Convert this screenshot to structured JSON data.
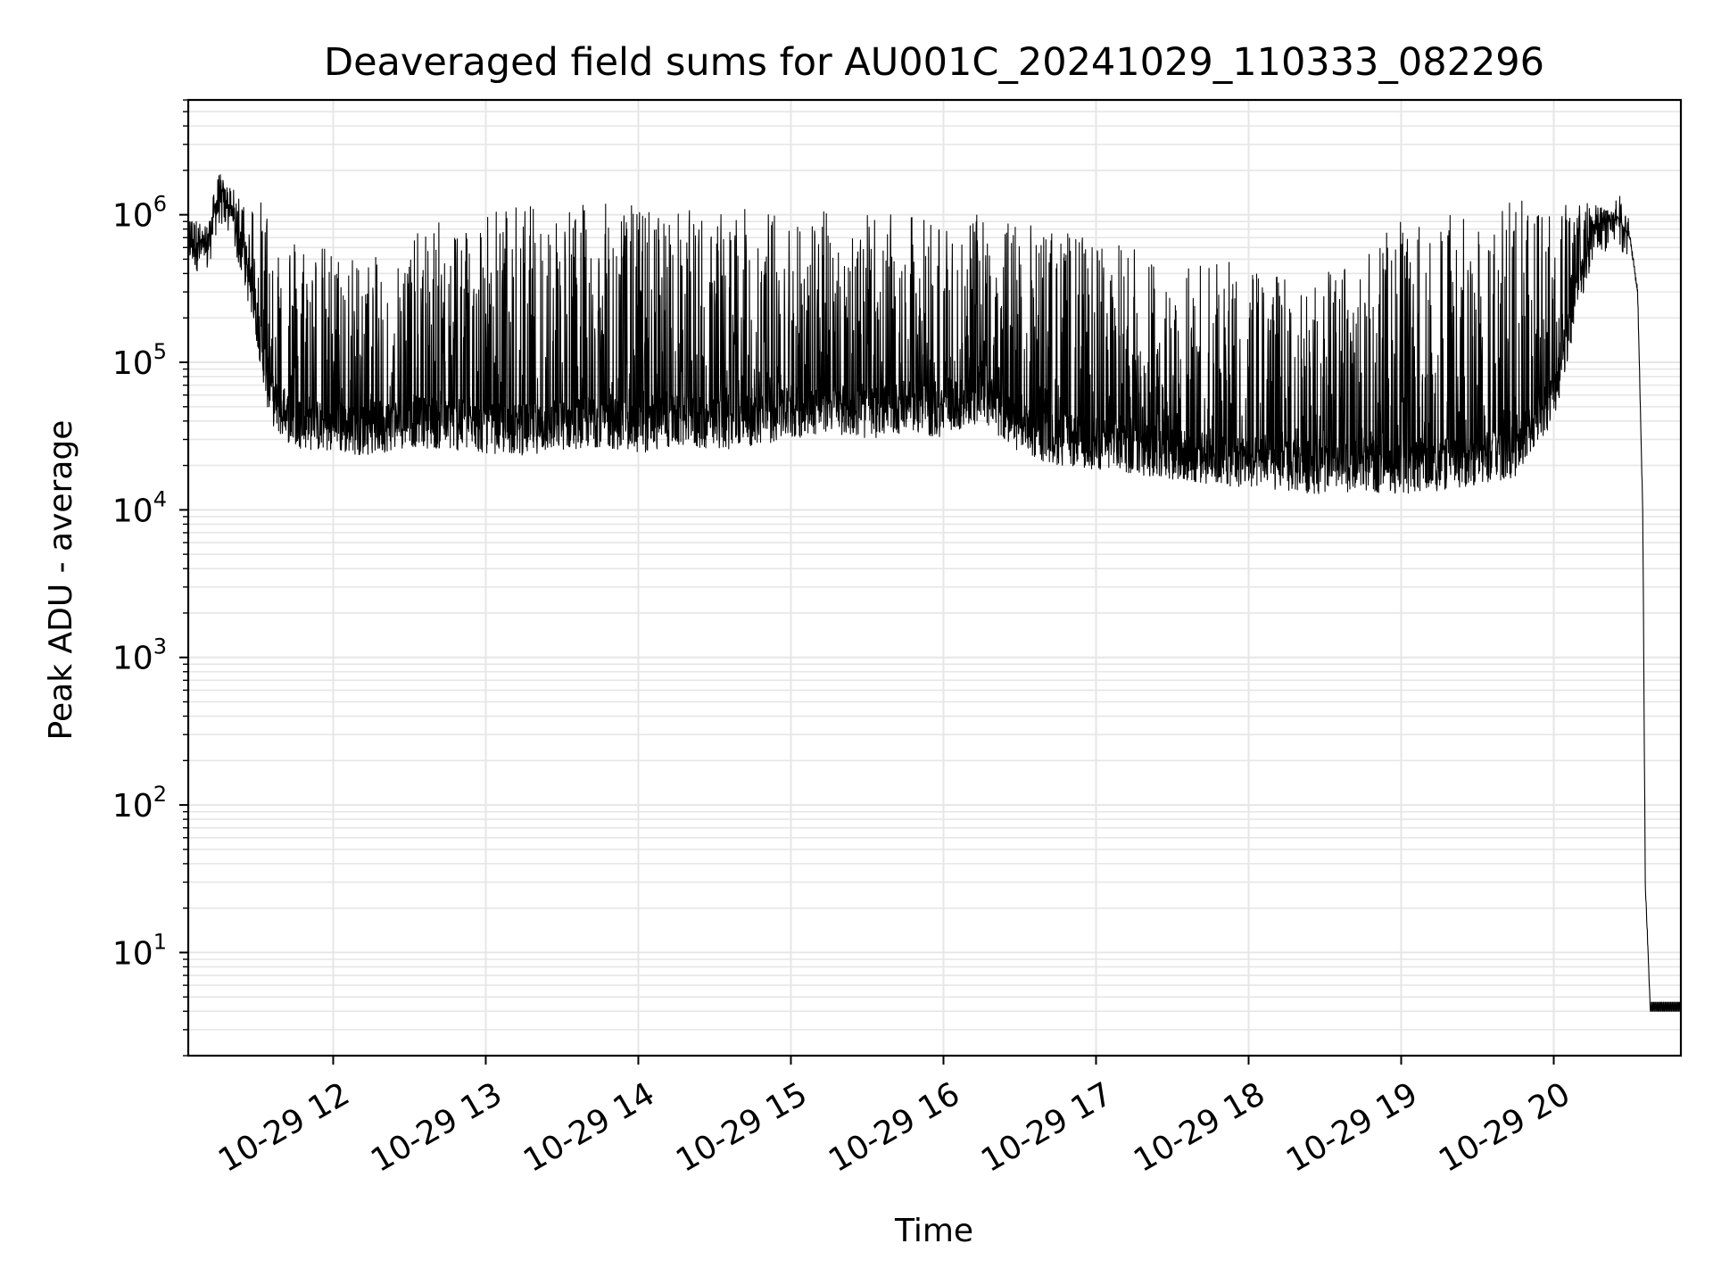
{
  "chart_data": {
    "type": "line",
    "title": "Deaveraged field sums for AU001C_20241029_110333_082296",
    "xlabel": "Time",
    "ylabel": "Peak ADU - average",
    "yscale": "log",
    "grid": true,
    "line_color": "#000000",
    "grid_color": "#e6e6e6",
    "xlim": [
      "10-29 11:03",
      "10-29 20:50"
    ],
    "ylim": [
      2,
      6000000
    ],
    "x_tick_labels": [
      "10-29 12",
      "10-29 13",
      "10-29 14",
      "10-29 15",
      "10-29 16",
      "10-29 17",
      "10-29 18",
      "10-29 19",
      "10-29 20"
    ],
    "y_tick_labels": [
      {
        "base": "10",
        "exp": "1"
      },
      {
        "base": "10",
        "exp": "2"
      },
      {
        "base": "10",
        "exp": "3"
      },
      {
        "base": "10",
        "exp": "4"
      },
      {
        "base": "10",
        "exp": "5"
      },
      {
        "base": "10",
        "exp": "6"
      }
    ],
    "series": [
      {
        "x": [
          "10-29 11:03",
          "10-29 11:10",
          "10-29 11:15",
          "10-29 11:20",
          "10-29 11:25",
          "10-29 11:30",
          "10-29 11:35",
          "10-29 11:40",
          "10-29 11:45",
          "10-29 11:50",
          "10-29 12:00",
          "10-29 12:15",
          "10-29 12:30",
          "10-29 12:45",
          "10-29 13:00",
          "10-29 13:15",
          "10-29 13:30",
          "10-29 13:45",
          "10-29 14:00",
          "10-29 14:15",
          "10-29 14:30",
          "10-29 14:45",
          "10-29 15:00",
          "10-29 15:15",
          "10-29 15:30",
          "10-29 15:45",
          "10-29 16:00",
          "10-29 16:15",
          "10-29 16:30",
          "10-29 16:45",
          "10-29 17:00",
          "10-29 17:15",
          "10-29 17:30",
          "10-29 17:45",
          "10-29 18:00",
          "10-29 18:15",
          "10-29 18:30",
          "10-29 18:45",
          "10-29 19:00",
          "10-29 19:15",
          "10-29 19:30",
          "10-29 19:45",
          "10-29 20:00",
          "10-29 20:15",
          "10-29 20:25",
          "10-29 20:30",
          "10-29 20:33",
          "10-29 20:35",
          "10-29 20:36",
          "10-29 20:38",
          "10-29 20:50"
        ],
        "baseline": [
          700000,
          550000,
          1300000,
          1000000,
          500000,
          200000,
          60000,
          45000,
          40000,
          38000,
          36000,
          35000,
          40000,
          38000,
          36000,
          35000,
          38000,
          40000,
          36000,
          40000,
          38000,
          40000,
          45000,
          50000,
          45000,
          50000,
          45000,
          60000,
          35000,
          30000,
          28000,
          26000,
          24000,
          22000,
          21000,
          20000,
          19000,
          20000,
          19000,
          20000,
          22000,
          25000,
          60000,
          700000,
          950000,
          700000,
          300000,
          10000,
          30,
          4,
          4
        ],
        "peak_envelope": [
          750000,
          700000,
          1600000,
          1500000,
          1400000,
          1300000,
          1200000,
          900000,
          800000,
          700000,
          600000,
          500000,
          700000,
          1000000,
          1200000,
          1200000,
          1200000,
          1200000,
          1200000,
          1100000,
          1100000,
          1100000,
          1100000,
          1100000,
          1000000,
          1000000,
          1000000,
          1000000,
          900000,
          800000,
          700000,
          600000,
          500000,
          500000,
          450000,
          400000,
          400000,
          500000,
          1000000,
          1000000,
          1200000,
          1300000,
          1300000,
          1200000,
          1000000,
          700000,
          300000,
          10000,
          30,
          4,
          4
        ]
      }
    ]
  }
}
